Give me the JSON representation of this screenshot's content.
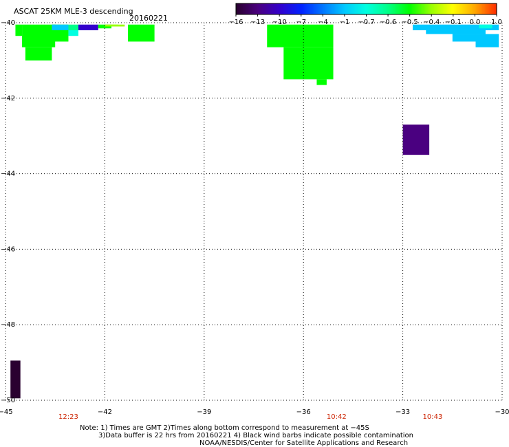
{
  "chart_data": {
    "type": "heatmap",
    "title": "ASCAT 25KM MLE-3 descending",
    "date_label": "20160221",
    "x_ticks": [
      "-45",
      "-42",
      "-39",
      "-36",
      "-33",
      "-30"
    ],
    "y_ticks": [
      "-40",
      "-42",
      "-44",
      "-46",
      "-48",
      "-50"
    ],
    "xlim": [
      -45,
      -30
    ],
    "ylim": [
      -50,
      -40
    ],
    "grid": true,
    "time_labels": [
      {
        "lon": -43.1,
        "text": "12:23"
      },
      {
        "lon": -35.0,
        "text": "10:42"
      },
      {
        "lon": -32.1,
        "text": "10:43"
      }
    ],
    "colorbar": {
      "labels": [
        "-16",
        "-13",
        "-10",
        "-7",
        "-4",
        "-1",
        "-0.7",
        "-0.6",
        "-0.5",
        "-0.4",
        "-0.1",
        "0.0",
        "1.0"
      ],
      "colors": [
        "#2a0030",
        "#4a0080",
        "#3300cc",
        "#0022ff",
        "#0077ff",
        "#00c8ff",
        "#00ffe0",
        "#00ff88",
        "#00ff00",
        "#99ff00",
        "#ffff00",
        "#ffaa00",
        "#ff3000"
      ]
    },
    "cells": [
      {
        "lon0": -44.7,
        "lon1": -44.5,
        "lat0": -40.05,
        "lat1": -40.35,
        "value": -0.5
      },
      {
        "lon0": -44.5,
        "lon1": -43.5,
        "lat0": -40.05,
        "lat1": -40.65,
        "value": -0.5
      },
      {
        "lon0": -44.4,
        "lon1": -43.6,
        "lat0": -40.65,
        "lat1": -41.0,
        "value": -0.5
      },
      {
        "lon0": -43.6,
        "lon1": -43.1,
        "lat0": -40.05,
        "lat1": -40.5,
        "value": -0.5
      },
      {
        "lon0": -43.1,
        "lon1": -42.8,
        "lat0": -40.05,
        "lat1": -40.2,
        "value": -0.6
      },
      {
        "lon0": -43.1,
        "lon1": -42.8,
        "lat0": -40.2,
        "lat1": -40.35,
        "value": -0.7
      },
      {
        "lon0": -43.6,
        "lon1": -43.1,
        "lat0": -40.05,
        "lat1": -40.2,
        "value": -1
      },
      {
        "lon0": -42.8,
        "lon1": -42.2,
        "lat0": -40.05,
        "lat1": -40.2,
        "value": -10
      },
      {
        "lon0": -42.2,
        "lon1": -41.8,
        "lat0": -40.05,
        "lat1": -40.15,
        "value": -0.5
      },
      {
        "lon0": -41.8,
        "lon1": -41.6,
        "lat0": -40.05,
        "lat1": -40.1,
        "value": -0.4
      },
      {
        "lon0": -42.0,
        "lon1": -41.4,
        "lat0": -40.05,
        "lat1": -40.1,
        "value": -0.4
      },
      {
        "lon0": -41.3,
        "lon1": -40.5,
        "lat0": -40.05,
        "lat1": -40.5,
        "value": -0.5
      },
      {
        "lon0": -37.1,
        "lon1": -35.1,
        "lat0": -40.05,
        "lat1": -40.65,
        "value": -0.5
      },
      {
        "lon0": -36.6,
        "lon1": -35.1,
        "lat0": -40.65,
        "lat1": -41.5,
        "value": -0.5
      },
      {
        "lon0": -35.6,
        "lon1": -35.3,
        "lat0": -41.5,
        "lat1": -41.65,
        "value": -0.5
      },
      {
        "lon0": -33.0,
        "lon1": -32.2,
        "lat0": -42.7,
        "lat1": -43.5,
        "value": -13
      },
      {
        "lon0": -32.7,
        "lon1": -30.1,
        "lat0": -40.05,
        "lat1": -40.2,
        "value": -1
      },
      {
        "lon0": -32.3,
        "lon1": -30.5,
        "lat0": -40.2,
        "lat1": -40.3,
        "value": -1
      },
      {
        "lon0": -31.5,
        "lon1": -30.8,
        "lat0": -40.3,
        "lat1": -40.5,
        "value": -1
      },
      {
        "lon0": -30.8,
        "lon1": -30.1,
        "lat0": -40.3,
        "lat1": -40.65,
        "value": -1
      },
      {
        "lon0": -30.7,
        "lon1": -30.3,
        "lat0": -40.05,
        "lat1": -40.15,
        "value": -0.7
      },
      {
        "lon0": -44.85,
        "lon1": -44.55,
        "lat0": -48.95,
        "lat1": -49.95,
        "value": -16
      }
    ]
  },
  "notes": {
    "line1": "Note: 1) Times are GMT 2)Times along bottom correspond to measurement at −45S",
    "line2": "3)Data buffer is 22 hrs from 20160221 4) Black wind barbs indicate possible contamination",
    "line3": "NOAA/NESDIS/Center for Satellite Applications and Research"
  }
}
